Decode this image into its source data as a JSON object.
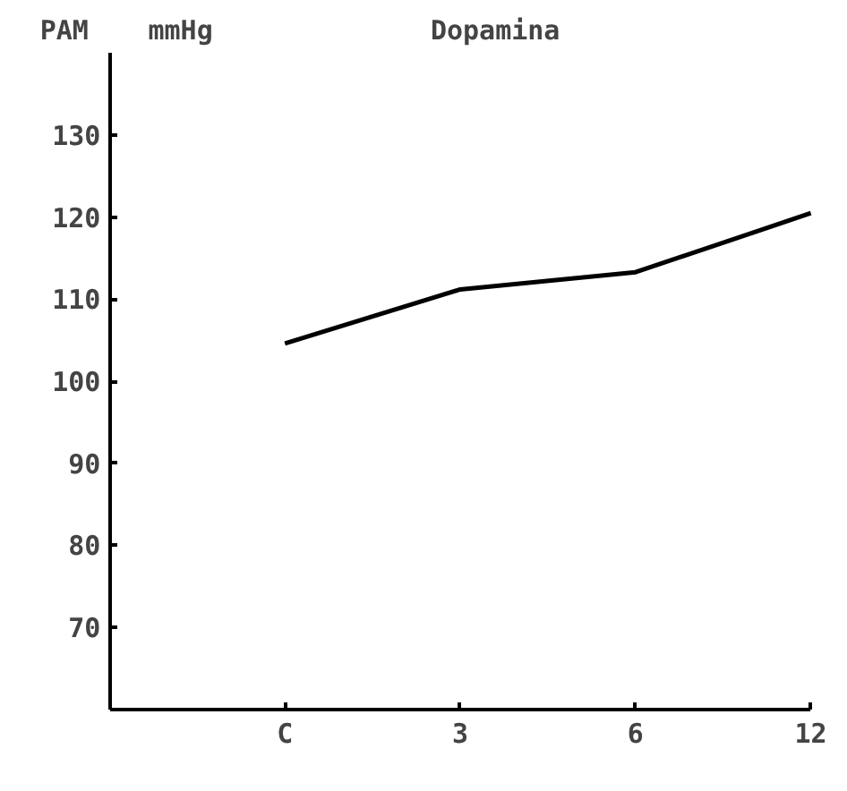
{
  "chart_data": {
    "type": "line",
    "title": "Dopamina",
    "ylabel": "PAM",
    "annotations": [
      "mmHg"
    ],
    "categories": [
      "C",
      "3",
      "6",
      "12"
    ],
    "series": [
      {
        "color": "#000000",
        "values": [
          104.6,
          111.2,
          113.3,
          120.5
        ]
      }
    ],
    "ylim": [
      60,
      140
    ],
    "yticks": [
      {
        "value": 60,
        "label": null
      },
      70,
      80,
      90,
      100,
      110,
      120,
      130
    ],
    "grid": false,
    "marker": "none",
    "line_style": "solid"
  }
}
